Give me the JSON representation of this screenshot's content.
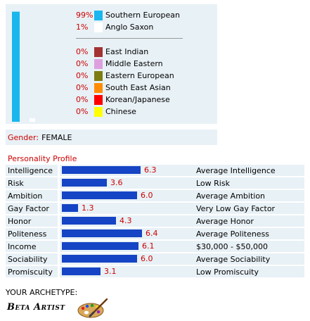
{
  "ancestry": {
    "items": [
      {
        "percent": "99%",
        "label": "Southern European",
        "color": "#1ab6ee"
      },
      {
        "percent": "1%",
        "label": "Anglo Saxon",
        "color": "#ffffff"
      },
      {
        "percent": "0%",
        "label": "East Indian",
        "color": "#a33333"
      },
      {
        "percent": "0%",
        "label": "Middle Eastern",
        "color": "#dda0dd"
      },
      {
        "percent": "0%",
        "label": "Eastern European",
        "color": "#7d7d12"
      },
      {
        "percent": "0%",
        "label": "South East Asian",
        "color": "#ff8c00"
      },
      {
        "percent": "0%",
        "label": "Korean/Japanese",
        "color": "#ff0000"
      },
      {
        "percent": "0%",
        "label": "Chinese",
        "color": "#ffff00"
      }
    ]
  },
  "chart_data": {
    "type": "bar",
    "categories": [
      "Southern European",
      "Anglo Saxon"
    ],
    "values": [
      99,
      1
    ],
    "colors": [
      "#1ab6ee",
      "#ffffff"
    ],
    "ylim": [
      0,
      100
    ]
  },
  "gender": {
    "label": "Gender:",
    "value": "FEMALE"
  },
  "personality": {
    "title": "Personality Profile",
    "max": 10,
    "traits": [
      {
        "name": "Intelligence",
        "value": 6.3,
        "value_text": "6.3",
        "desc": "Average Intelligence"
      },
      {
        "name": "Risk",
        "value": 3.6,
        "value_text": "3.6",
        "desc": "Low Risk"
      },
      {
        "name": "Ambition",
        "value": 6.0,
        "value_text": "6.0",
        "desc": "Average Ambition"
      },
      {
        "name": "Gay Factor",
        "value": 1.3,
        "value_text": "1.3",
        "desc": "Very Low Gay Factor"
      },
      {
        "name": "Honor",
        "value": 4.3,
        "value_text": "4.3",
        "desc": "Average Honor"
      },
      {
        "name": "Politeness",
        "value": 6.4,
        "value_text": "6.4",
        "desc": "Average Politeness"
      },
      {
        "name": "Income",
        "value": 6.1,
        "value_text": "6.1",
        "desc": "$30,000 - $50,000"
      },
      {
        "name": "Sociability",
        "value": 6.0,
        "value_text": "6.0",
        "desc": "Average Sociability"
      },
      {
        "name": "Promiscuity",
        "value": 3.1,
        "value_text": "3.1",
        "desc": "Low Promiscuity"
      }
    ]
  },
  "archetype": {
    "label": "YOUR ARCHETYPE:",
    "name": "Beta Artist",
    "icon": "palette-icon"
  }
}
